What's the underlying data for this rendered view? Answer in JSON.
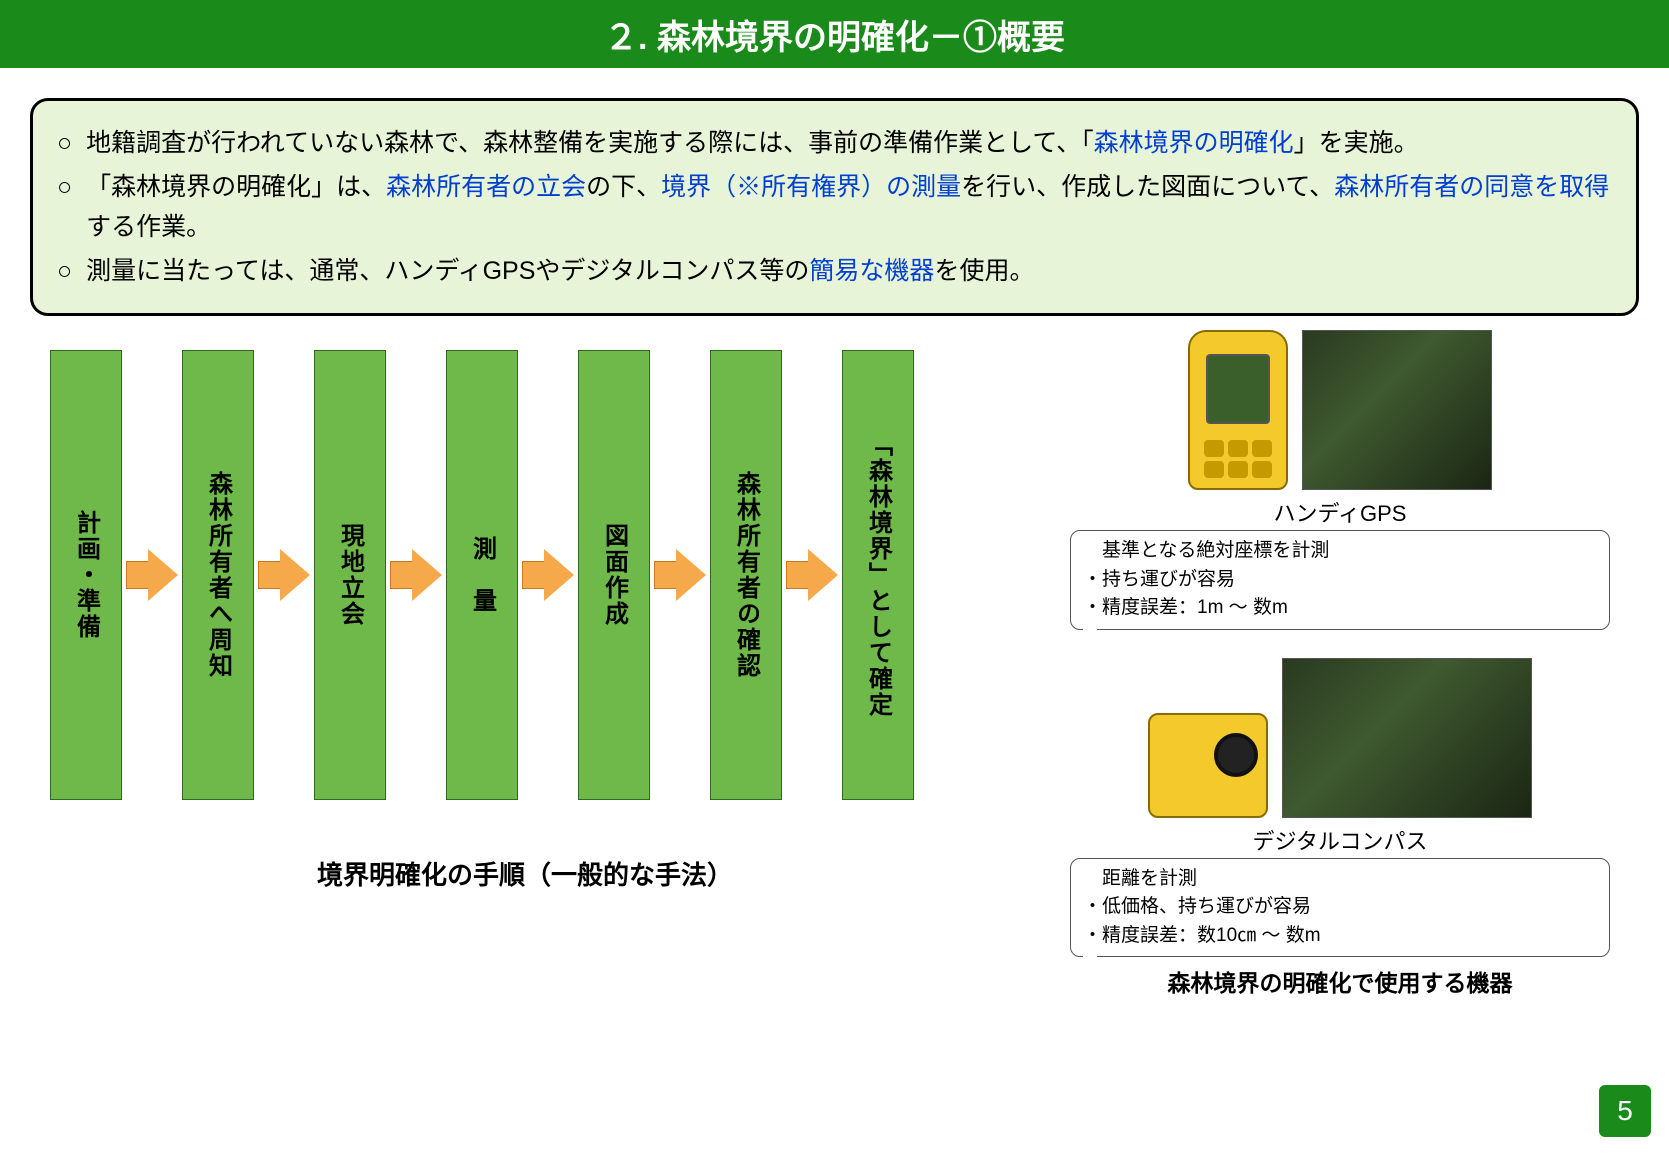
{
  "colors": {
    "header_bg": "#1a8b1a",
    "header_text": "#ffffff",
    "summary_bg": "#e8f4d8",
    "highlight_text": "#0040d0",
    "step_fill": "#6fb94b",
    "arrow_fill": "#f6a94a",
    "arrow_border": "#c87820",
    "page_badge": "#1a8b1a"
  },
  "header": {
    "title": "２. 森林境界の明確化－①概要"
  },
  "summary": {
    "line1_a": "地籍調査が行われていない森林で、森林整備を実施する際には、事前の準備作業として、「",
    "line1_b": "森林境界の明確化",
    "line1_c": "」を実施。",
    "line2_a": "「森林境界の明確化」は、",
    "line2_b": "森林所有者の立会",
    "line2_c": "の下、",
    "line2_d": "境界（※所有権界）の測量",
    "line2_e": "を行い、作成した図面について、",
    "line2_f": "森林所有者の同意を取得",
    "line2_g": "する作業。",
    "line3_a": "測量に当たっては、通常、ハンディGPSやデジタルコンパス等の",
    "line3_b": "簡易な機器",
    "line3_c": "を使用。",
    "bullet": "○"
  },
  "flow": {
    "steps": [
      "計画・準備",
      "森林所有者へ周知",
      "現地立会",
      "測　量",
      "図面作成",
      "森林所有者の確認",
      "「森林境界」として確定"
    ],
    "caption": "境界明確化の手順（一般的な手法）"
  },
  "devices": {
    "gps": {
      "title": "ハンディGPS",
      "spec1": "・基準となる絶対座標を計測",
      "spec2": "・持ち運びが容易",
      "spec3": "・精度誤差：1m ～ 数m",
      "photo_w": 190,
      "photo_h": 160
    },
    "compass": {
      "title": "デジタルコンパス",
      "spec1": "・距離を計測",
      "spec2": "・低価格、持ち運びが容易",
      "spec3": "・精度誤差：数10㎝ ～ 数m",
      "photo_w": 250,
      "photo_h": 160
    },
    "caption": "森林境界の明確化で使用する機器"
  },
  "page_number": "5"
}
